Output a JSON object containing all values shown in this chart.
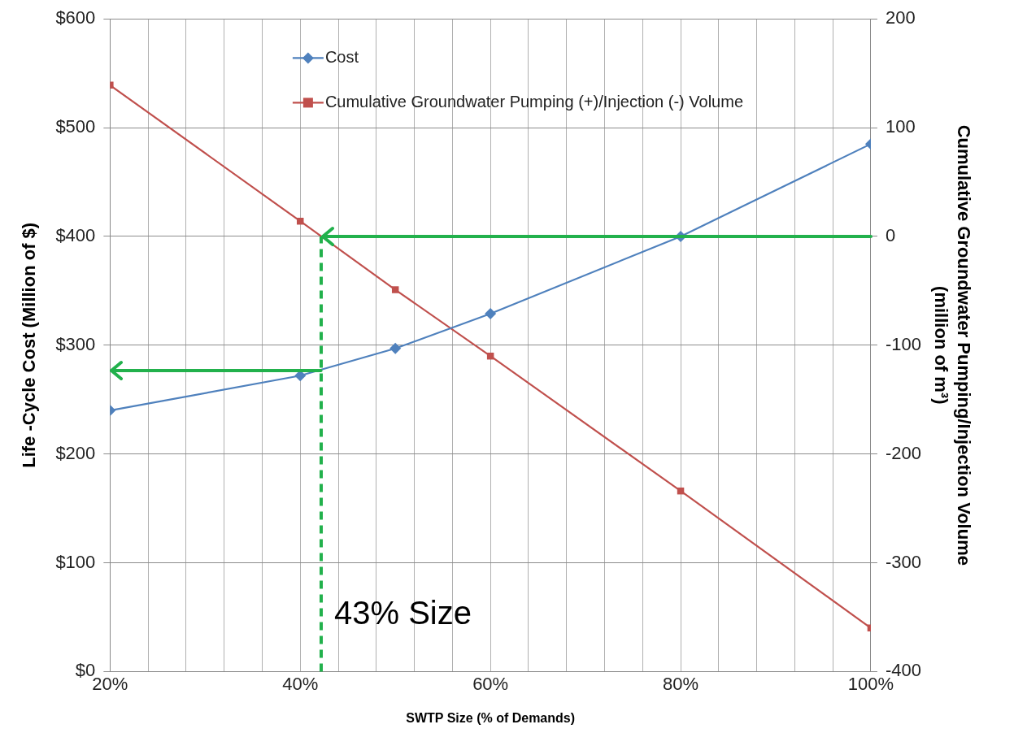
{
  "chart_data": {
    "type": "line",
    "xlabel": "SWTP Size (% of Demands)",
    "ylabel": "Life -Cycle Cost (Million of $)",
    "y2label": "Cumulative Groundwater Pumping/Injection Volume (million of m³)",
    "x": [
      20,
      40,
      50,
      60,
      80,
      100
    ],
    "series": [
      {
        "name": "Cost",
        "color": "#4f81bd",
        "marker": "diamond",
        "values": [
          240,
          272,
          297,
          329,
          400,
          485
        ]
      },
      {
        "name": "Cumulative Groundwater Pumping (+)/Injection (-) Volume",
        "color": "#c0504d",
        "marker": "square",
        "axis": "y2",
        "values": [
          139,
          14,
          -49,
          -110,
          -234,
          -360
        ]
      }
    ],
    "xlim": [
      20,
      100
    ],
    "xticks": [
      {
        "value": 20,
        "label": "20%"
      },
      {
        "value": 24,
        "label": null
      },
      {
        "value": 28,
        "label": null
      },
      {
        "value": 32,
        "label": null
      },
      {
        "value": 36,
        "label": null
      },
      {
        "value": 40,
        "label": "40%"
      },
      {
        "value": 44,
        "label": null
      },
      {
        "value": 48,
        "label": null
      },
      {
        "value": 52,
        "label": null
      },
      {
        "value": 56,
        "label": null
      },
      {
        "value": 60,
        "label": "60%"
      },
      {
        "value": 64,
        "label": null
      },
      {
        "value": 68,
        "label": null
      },
      {
        "value": 72,
        "label": null
      },
      {
        "value": 76,
        "label": null
      },
      {
        "value": 80,
        "label": "80%"
      },
      {
        "value": 84,
        "label": null
      },
      {
        "value": 88,
        "label": null
      },
      {
        "value": 92,
        "label": null
      },
      {
        "value": 96,
        "label": null
      },
      {
        "value": 100,
        "label": "100%"
      }
    ],
    "ylim": [
      0,
      600
    ],
    "yticks": [
      {
        "value": 0,
        "label": "$0"
      },
      {
        "value": 100,
        "label": "$100"
      },
      {
        "value": 200,
        "label": "$200"
      },
      {
        "value": 300,
        "label": "$300"
      },
      {
        "value": 400,
        "label": "$400"
      },
      {
        "value": 500,
        "label": "$500"
      },
      {
        "value": 600,
        "label": "$600"
      }
    ],
    "y2lim": [
      -400,
      200
    ],
    "y2ticks": [
      -400,
      -300,
      -200,
      -100,
      0,
      100,
      200
    ],
    "ref_lines": [
      {
        "axis": "x",
        "value": 42.2,
        "label": "43% Size",
        "color": "#22b14c",
        "line_style": "dashed"
      },
      {
        "axis": "y",
        "value": 277,
        "color": "#22b14c"
      },
      {
        "axis": "y2",
        "value": 0,
        "color": "#22b14c"
      }
    ],
    "grid": true,
    "legend": "top"
  }
}
